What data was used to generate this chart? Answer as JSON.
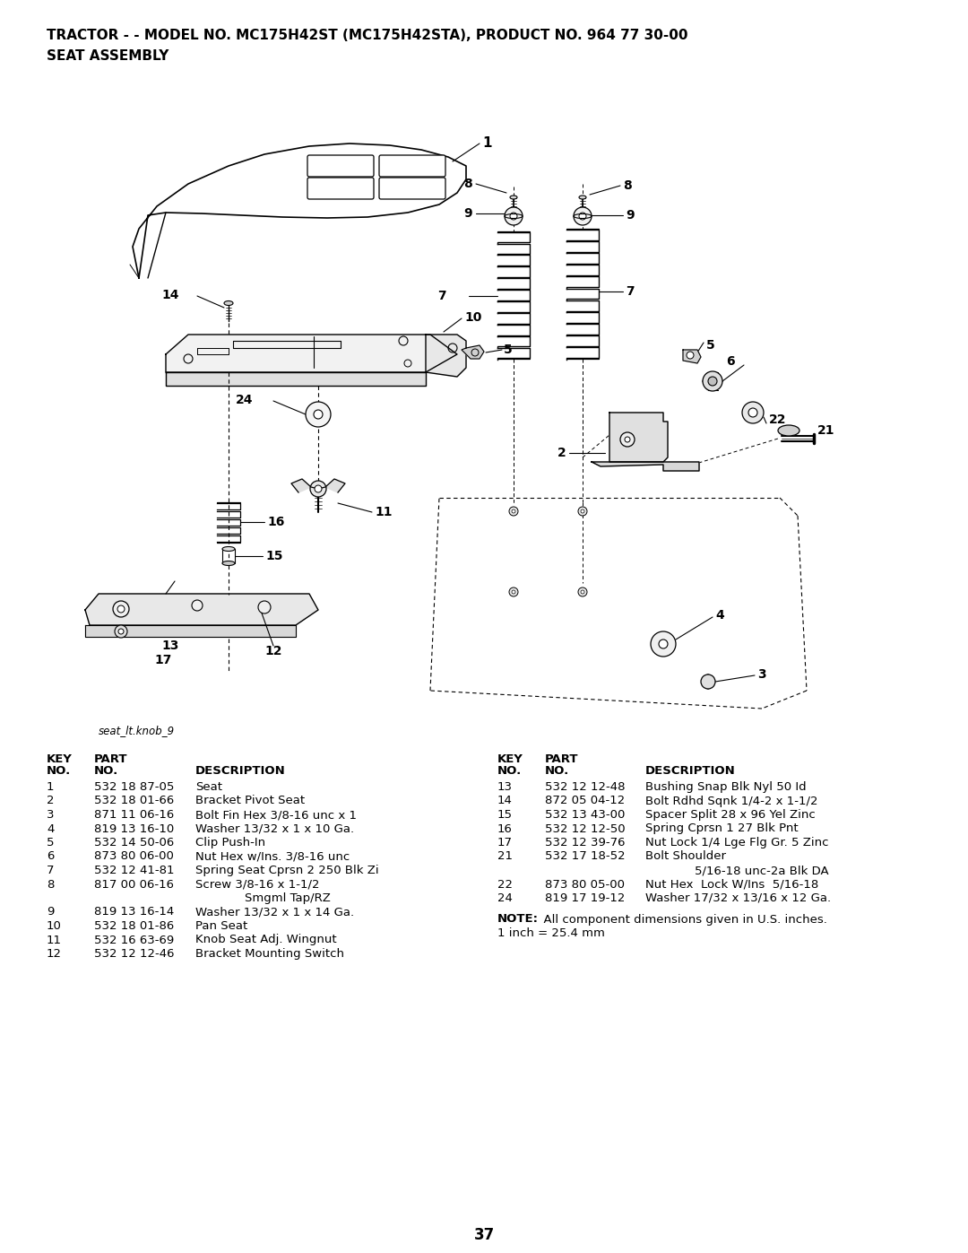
{
  "title_line1": "TRACTOR - - MODEL NO. MC175H42ST (MC175H42STA), PRODUCT NO. 964 77 30-00",
  "title_line2": "SEAT ASSEMBLY",
  "image_caption": "seat_lt.knob_9",
  "page_number": "37",
  "bg_color": "#ffffff",
  "text_color": "#000000",
  "parts_left": [
    {
      "key": "1",
      "part": "532 18 87-05",
      "desc": "Seat"
    },
    {
      "key": "2",
      "part": "532 18 01-66",
      "desc": "Bracket Pivot Seat"
    },
    {
      "key": "3",
      "part": "871 11 06-16",
      "desc": "Bolt Fin Hex 3/8-16 unc x 1"
    },
    {
      "key": "4",
      "part": "819 13 16-10",
      "desc": "Washer 13/32 x 1 x 10 Ga."
    },
    {
      "key": "5",
      "part": "532 14 50-06",
      "desc": "Clip Push-In"
    },
    {
      "key": "6",
      "part": "873 80 06-00",
      "desc": "Nut Hex w/Ins. 3/8-16 unc"
    },
    {
      "key": "7",
      "part": "532 12 41-81",
      "desc": "Spring Seat Cprsn 2 250 Blk Zi"
    },
    {
      "key": "8",
      "part": "817 00 06-16",
      "desc": "Screw 3/8-16 x 1-1/2",
      "desc2": "Smgml Tap/RZ"
    },
    {
      "key": "9",
      "part": "819 13 16-14",
      "desc": "Washer 13/32 x 1 x 14 Ga."
    },
    {
      "key": "10",
      "part": "532 18 01-86",
      "desc": "Pan Seat"
    },
    {
      "key": "11",
      "part": "532 16 63-69",
      "desc": "Knob Seat Adj. Wingnut"
    },
    {
      "key": "12",
      "part": "532 12 12-46",
      "desc": "Bracket Mounting Switch"
    }
  ],
  "parts_right": [
    {
      "key": "13",
      "part": "532 12 12-48",
      "desc": "Bushing Snap Blk Nyl 50 Id"
    },
    {
      "key": "14",
      "part": "872 05 04-12",
      "desc": "Bolt Rdhd Sqnk 1/4-2 x 1-1/2"
    },
    {
      "key": "15",
      "part": "532 13 43-00",
      "desc": "Spacer Split 28 x 96 Yel Zinc"
    },
    {
      "key": "16",
      "part": "532 12 12-50",
      "desc": "Spring Cprsn 1 27 Blk Pnt"
    },
    {
      "key": "17",
      "part": "532 12 39-76",
      "desc": "Nut Lock 1/4 Lge Flg Gr. 5 Zinc"
    },
    {
      "key": "21",
      "part": "532 17 18-52",
      "desc": "Bolt Shoulder",
      "desc2": "5/16-18 unc-2a Blk DA"
    },
    {
      "key": "22",
      "part": "873 80 05-00",
      "desc": "Nut Hex  Lock W/Ins  5/16-18"
    },
    {
      "key": "24",
      "part": "819 17 19-12",
      "desc": "Washer 17/32 x 13/16 x 12 Ga."
    }
  ],
  "note_bold": "NOTE:",
  "note_text": "  All component dimensions given in U.S. inches.",
  "note_line2": "1 inch = 25.4 mm"
}
